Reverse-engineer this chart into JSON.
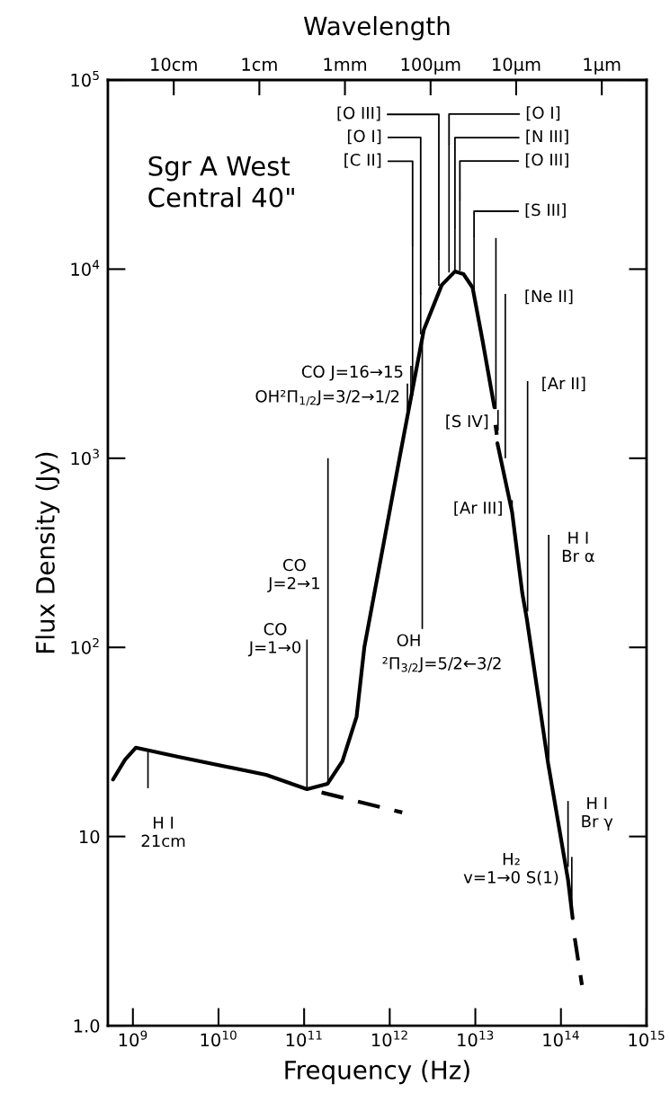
{
  "chart_data": {
    "type": "line",
    "marker": "none",
    "xlabel": "Frequency (Hz)",
    "ylabel": "Flux Density (Jy)",
    "x2label": "Wavelength",
    "log": "xy",
    "xlim": [
      510000000.0,
      1000000000000000.0
    ],
    "ylim": [
      1,
      100000
    ],
    "xticks": [
      {
        "value": 1000000000.0,
        "label": "10$^{9}$"
      },
      {
        "value": 10000000000.0,
        "label": "10$^{10}$"
      },
      {
        "value": 100000000000.0,
        "label": "10$^{11}$"
      },
      {
        "value": 1000000000000.0,
        "label": "10$^{12}$"
      },
      {
        "value": 10000000000000.0,
        "label": "10$^{13}$"
      },
      {
        "value": 100000000000000.0,
        "label": "10$^{14}$"
      },
      {
        "value": 1000000000000000.0,
        "label": "10$^{15}$"
      }
    ],
    "yticks": [
      {
        "value": 1,
        "label": "1.0"
      },
      10,
      {
        "value": 100,
        "label": "10$^{2}$"
      },
      {
        "value": 1000,
        "label": "10$^{3}$"
      },
      {
        "value": 10000,
        "label": "10$^{4}$"
      },
      {
        "value": 100000,
        "label": "10$^{5}$"
      }
    ],
    "grid": false,
    "series": [
      {
        "line_style": "solid",
        "color": "#000000",
        "x": [
          586000000.0,
          810000000.0,
          1080000000.0,
          3400000000.0,
          36000000000.0,
          108000000000.0,
          188000000000.0,
          280000000000.0,
          410000000000.0,
          505000000000.0,
          1300000000000.0,
          2500000000000.0,
          4050000000000.0,
          5800000000000.0,
          7300000000000.0,
          9300000000000.0,
          12200000000000.0,
          16700000000000.0
        ],
        "values": [
          20,
          25.5,
          29.5,
          26.4,
          21.2,
          17.8,
          19,
          25,
          43,
          100,
          1000,
          4770,
          8240,
          9730,
          9400,
          7980,
          4140,
          1860
        ]
      },
      {
        "line_style": "dashed",
        "color": "#000000",
        "x": [
          17200000000000.0,
          17800000000000.0
        ],
        "values": [
          1500,
          1330
        ]
      },
      {
        "line_style": "solid",
        "color": "#000000",
        "x": [
          18100000000000.0,
          26900000000000.0,
          35400000000000.0,
          40000000000000.0,
          71000000000000.0,
          121000000000000.0,
          137000000000000.0
        ],
        "values": [
          1200,
          518,
          193,
          141,
          24.2,
          5.9,
          3.7
        ]
      },
      {
        "line_style": "dashed",
        "color": "#000000",
        "x": [
          145000000000000.0,
          176000000000000.0
        ],
        "values": [
          2.9,
          1.64
        ]
      },
      {
        "line_style": "dashed",
        "color": "#000000",
        "x": [
          160000000000.0,
          1400000000000.0
        ],
        "values": [
          17.1,
          13.4
        ]
      },
      {
        "type": "bar",
        "color": "#000000",
        "x": [
          1500000000.0,
          108000000000.0,
          190000000000.0,
          1610000000000.0,
          1770000000000.0,
          1850000000000.0,
          2300000000000.0,
          2400000000000.0,
          3750000000000.0,
          4930000000000.0,
          5780000000000.0,
          6600000000000.0,
          9660000000000.0,
          17400000000000.0,
          18400000000000.0,
          22400000000000.0,
          26900000000000.0,
          40800000000000.0,
          72000000000000.0,
          121000000000000.0,
          134000000000000.0
        ],
        "base": [
          18,
          18,
          19,
          1780,
          2030,
          2150,
          4520,
          125,
          8170,
          9600,
          9930,
          9800,
          7160,
          1820,
          1400,
          1000,
          500,
          155,
          24,
          6.9,
          4.0
        ],
        "values": [
          10,
          92,
          981,
          700,
          1050,
          11150,
          2880,
          4595,
          3130,
          36400,
          6670,
          13500,
          7740,
          12780,
          400,
          6400,
          100,
          2405,
          370,
          8.5,
          3.8
        ]
      }
    ],
    "annotations": [
      "Sgr A West\nCentral 40\"",
      {
        "text": "H I\n21cm",
        "x": 1500000000.0,
        "y": 18
      },
      {
        "text": "CO\nJ=1→0",
        "x": 108000000000.0,
        "y": 110
      },
      {
        "text": "CO\nJ=2→1",
        "x": 190000000000.0,
        "y": 240
      },
      {
        "text": "CO J=16→15",
        "x": 1770000000000.0,
        "y": 3080
      },
      {
        "text": "OH²Π$_{1/2}$J=3/2→1/2",
        "x": 1610000000000.0,
        "y": 2480
      },
      {
        "text": "OH",
        "x": 2400000000000.0,
        "y": 125
      },
      {
        "text": "[O III]",
        "x": 3750000000000.0,
        "y": 11300
      },
      {
        "text": "[O I]",
        "x": 2300000000000.0,
        "y": 7400
      },
      {
        "text": "[C II]",
        "x": 1850000000000.0,
        "y": 13300
      },
      {
        "text": "[O I]",
        "x": 4930000000000.0,
        "y": 46000
      },
      {
        "text": "[N III]",
        "x": 5780000000000.0,
        "y": 16600
      },
      {
        "text": "[O III]",
        "x": 6600000000000.0,
        "y": 23300
      },
      {
        "text": "[S III]",
        "x": 9660000000000.0,
        "y": 14900
      },
      {
        "text": "[Ne II]",
        "x": 22400000000000.0,
        "y": 7400
      },
      {
        "text": "[Ar II]",
        "x": 40800000000000.0,
        "y": 2560
      },
      {
        "text": "[S IV]",
        "x": 18400000000000.0,
        "y": 1800
      },
      {
        "text": "[Ar III]",
        "x": 26900000000000.0,
        "y": 600
      },
      {
        "text": "H I\nBr α",
        "x": 72000000000000.0,
        "y": 394
      },
      {
        "text": "H I\nBr γ",
        "x": 121000000000000.0,
        "y": 15.4
      },
      {
        "text": "H₂\nv=1→0 S(1)",
        "x": 134000000000000.0,
        "y": 7.8
      },
      {
        "text": "²Π$_{3/2}$J=5/2←3/2",
        "x": 2400000000000.0,
        "y": 125
      },
      "10cm",
      "1cm",
      "1mm",
      "100μm",
      "10μm",
      "1μm"
    ]
  }
}
